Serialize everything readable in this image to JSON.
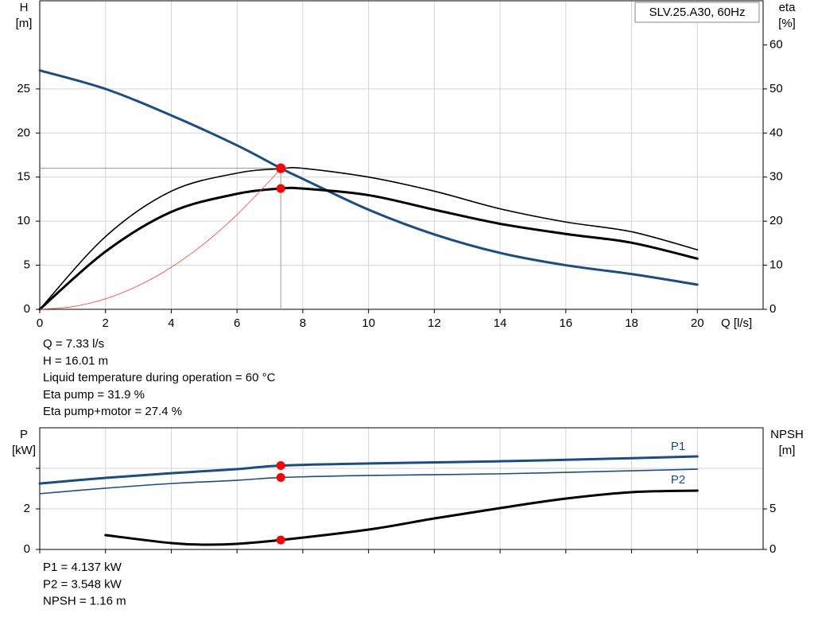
{
  "chart_data": [
    {
      "type": "line",
      "legend_box": "SLV.25.A30, 60Hz",
      "y_label": [
        "H",
        "[m]"
      ],
      "y2_label": [
        "eta",
        "[%]"
      ],
      "x_label": "Q [l/s]",
      "xlim": [
        0,
        22
      ],
      "xticks": [
        0,
        2,
        4,
        6,
        8,
        10,
        12,
        14,
        16,
        18,
        20
      ],
      "ylim": [
        0,
        35
      ],
      "yticks": [
        0,
        5,
        10,
        15,
        20,
        25
      ],
      "y2lim": [
        0,
        70
      ],
      "y2ticks": [
        0,
        10,
        20,
        30,
        40,
        50,
        60
      ],
      "grid": true,
      "marker_x": 7.33,
      "marker_color": "#ff0000",
      "reference_color": "#999999",
      "series": [
        {
          "color": "#1a4d85",
          "style": "thick",
          "axis": "y",
          "x": [
            0,
            2,
            4,
            6,
            7.33,
            8,
            10,
            12,
            14,
            16,
            18,
            20
          ],
          "values": [
            27.1,
            25.0,
            22.0,
            18.6,
            16.0,
            14.8,
            11.3,
            8.5,
            6.4,
            5.0,
            4.0,
            2.8
          ],
          "marker": 16.01,
          "reference": true
        },
        {
          "color": "#000000",
          "style": "thin",
          "axis": "y2",
          "x": [
            0,
            2,
            4,
            6,
            7.33,
            8,
            10,
            12,
            14,
            16,
            18,
            20
          ],
          "values": [
            0,
            16.5,
            26.8,
            30.9,
            31.9,
            32.0,
            30.0,
            26.8,
            22.8,
            19.8,
            17.6,
            13.5
          ],
          "marker": 31.9
        },
        {
          "color": "#000000",
          "style": "thick",
          "axis": "y2",
          "x": [
            0,
            2,
            4,
            6,
            7.33,
            8,
            10,
            12,
            14,
            16,
            18,
            20
          ],
          "values": [
            0,
            13.1,
            22.1,
            26.2,
            27.4,
            27.4,
            25.9,
            22.6,
            19.4,
            17.1,
            15.1,
            11.5
          ],
          "marker": 27.4
        },
        {
          "color": "#ff4040",
          "style": "hair",
          "axis": "y",
          "x": [
            0,
            1,
            2,
            3,
            4,
            5,
            6,
            7,
            7.33
          ],
          "values": [
            0,
            0.3,
            1.19,
            2.68,
            4.77,
            7.45,
            10.73,
            14.6,
            16.01
          ]
        }
      ],
      "notes": [
        "Q = 7.33 l/s",
        "H = 16.01 m",
        "Liquid temperature during operation = 60 °C",
        "Eta pump = 31.9 %",
        "Eta pump+motor = 27.4 %"
      ]
    },
    {
      "type": "line",
      "y_label": [
        "P",
        "[kW]"
      ],
      "y2_label": [
        "NPSH",
        "[m]"
      ],
      "xlim": [
        0,
        22
      ],
      "xticks": [
        0,
        2,
        4,
        6,
        8,
        10,
        12,
        14,
        16,
        18,
        20
      ],
      "xtick_labels": false,
      "ylim": [
        0,
        6
      ],
      "yticks": [
        0,
        2
      ],
      "minor_yticks": [
        4
      ],
      "y2lim": [
        0,
        15
      ],
      "y2ticks": [
        0,
        5
      ],
      "grid": true,
      "marker_x": 7.33,
      "marker_color": "#ff0000",
      "series": [
        {
          "name": "P1",
          "label_side": "above",
          "color": "#1a4d85",
          "style": "thick",
          "axis": "y",
          "x": [
            0,
            2,
            4,
            6,
            7.33,
            10,
            14,
            18,
            20
          ],
          "values": [
            3.25,
            3.53,
            3.76,
            3.96,
            4.137,
            4.24,
            4.35,
            4.5,
            4.59
          ],
          "marker": 4.137
        },
        {
          "name": "P2",
          "label_side": "below",
          "color": "#1a4d85",
          "style": "thin",
          "axis": "y",
          "x": [
            0,
            2,
            4,
            6,
            7.33,
            10,
            14,
            18,
            20
          ],
          "values": [
            2.75,
            3.02,
            3.25,
            3.41,
            3.548,
            3.65,
            3.73,
            3.88,
            3.96
          ],
          "marker": 3.548
        },
        {
          "color": "#000000",
          "style": "thick",
          "axis": "y2",
          "x": [
            2,
            4,
            5,
            6,
            7.33,
            10,
            12,
            14,
            16,
            18,
            20
          ],
          "values": [
            1.76,
            0.78,
            0.59,
            0.69,
            1.16,
            2.45,
            3.82,
            5.1,
            6.27,
            7.06,
            7.25
          ],
          "marker": 1.16
        }
      ],
      "notes": [
        "P1 = 4.137 kW",
        "P2 = 3.548 kW",
        "NPSH = 1.16 m"
      ]
    }
  ]
}
